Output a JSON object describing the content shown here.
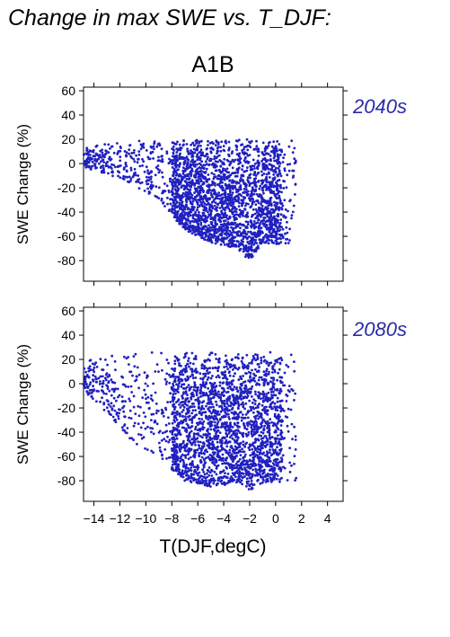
{
  "page": {
    "title": "Change in max SWE vs. T_DJF:"
  },
  "chart_data": {
    "type": "scatter",
    "title": "A1B",
    "xlabel": "T(DJF,degC)",
    "ylabel": "SWE Change (%)",
    "xlim": [
      -14.8,
      5.2
    ],
    "ylim": [
      -97,
      63
    ],
    "xticks": [
      -14,
      -12,
      -10,
      -8,
      -6,
      -4,
      -2,
      0,
      2,
      4
    ],
    "yticks": [
      -80,
      -60,
      -40,
      -20,
      0,
      20,
      40,
      60
    ],
    "point_color": "#2020c0",
    "label_color": "#2a2aa8",
    "panels": [
      {
        "label": "2040s",
        "x_range": [
          -14.8,
          1.6
        ],
        "y_max": 20,
        "envelope": [
          [
            -14.8,
            -3
          ],
          [
            -12,
            -12
          ],
          [
            -9,
            -30
          ],
          [
            -7,
            -55
          ],
          [
            -5,
            -65
          ],
          [
            -3,
            -70
          ],
          [
            -2,
            -80
          ],
          [
            -1,
            -65
          ],
          [
            1,
            -68
          ],
          [
            1.6,
            -40
          ]
        ],
        "notes": "dense cloud -14.8..1.6 degC, SWE change mostly -80..20%"
      },
      {
        "label": "2080s",
        "x_range": [
          -14.8,
          1.6
        ],
        "y_max": 26,
        "envelope": [
          [
            -14.8,
            -5
          ],
          [
            -13,
            -25
          ],
          [
            -11,
            -48
          ],
          [
            -9,
            -62
          ],
          [
            -7,
            -80
          ],
          [
            -5,
            -85
          ],
          [
            -3,
            -82
          ],
          [
            -2,
            -88
          ],
          [
            -1,
            -82
          ],
          [
            1.6,
            -80
          ]
        ],
        "notes": "dense cloud -14.8..1.6 degC, SWE change mostly -90..25%"
      }
    ]
  }
}
